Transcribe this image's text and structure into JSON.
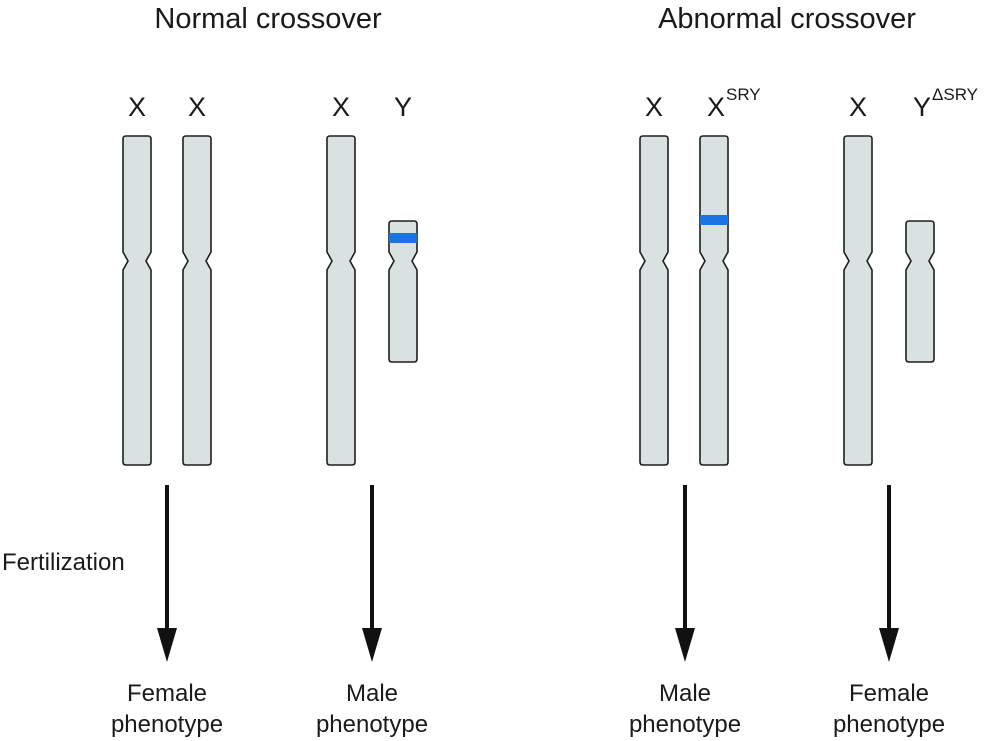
{
  "colors": {
    "chromosome_fill": "#d9e1e1",
    "chromosome_outline": "#1f1f1f",
    "sry_band": "#1b74e4",
    "arrow": "#111111"
  },
  "headings": {
    "normal": "Normal crossover",
    "abnormal": "Abnormal crossover"
  },
  "side_label": "Fertilization",
  "groups": [
    {
      "id": "normal-female",
      "chromosomes": [
        {
          "label": "X",
          "superscript": "",
          "type": "X",
          "sry": false
        },
        {
          "label": "X",
          "superscript": "",
          "type": "X",
          "sry": false
        }
      ],
      "outcome": {
        "line1": "Female",
        "line2": "phenotype"
      }
    },
    {
      "id": "normal-male",
      "chromosomes": [
        {
          "label": "X",
          "superscript": "",
          "type": "X",
          "sry": false
        },
        {
          "label": "Y",
          "superscript": "",
          "type": "Y",
          "sry": true
        }
      ],
      "outcome": {
        "line1": "Male",
        "line2": "phenotype"
      }
    },
    {
      "id": "abnormal-male",
      "chromosomes": [
        {
          "label": "X",
          "superscript": "",
          "type": "X",
          "sry": false
        },
        {
          "label": "X",
          "superscript": "SRY",
          "type": "X",
          "sry": true
        }
      ],
      "outcome": {
        "line1": "Male",
        "line2": "phenotype"
      }
    },
    {
      "id": "abnormal-female",
      "chromosomes": [
        {
          "label": "X",
          "superscript": "",
          "type": "X",
          "sry": false
        },
        {
          "label": "Y",
          "superscript": "ΔSRY",
          "type": "Y",
          "sry": false
        }
      ],
      "outcome": {
        "line1": "Female",
        "line2": "phenotype"
      }
    }
  ]
}
